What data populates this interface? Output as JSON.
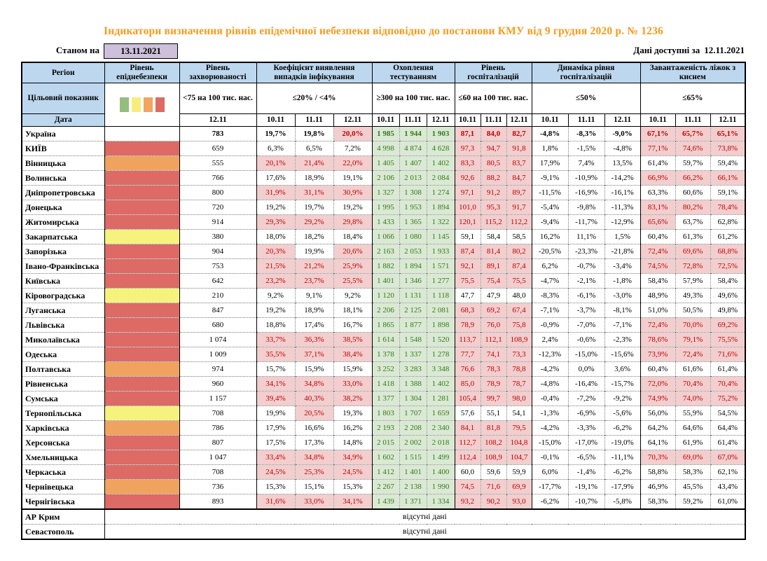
{
  "title": "Індикатори визначення рівнів епідемічної небезпеки відповідно до постанови КМУ від 9 грудня 2020 р. № 1236",
  "topbar": {
    "as_of_label": "Станом на",
    "as_of_date": "13.11.2021",
    "available_label": "Дані доступні за",
    "available_date": "12.11.2021"
  },
  "header": {
    "region_label": "Регіон",
    "target_label": "Цільовий показник",
    "date_label": "Дата",
    "legend": {
      "colors": [
        "#93BE7C",
        "#F5EE7D",
        "#F3A45F",
        "#DF6A63"
      ]
    },
    "groups": [
      {
        "name": "Рівень епіднебезпеки",
        "target": "",
        "dates": []
      },
      {
        "name": "Рівень захворюваності",
        "target": "<75 на 100 тис. нас.",
        "dates": [
          "12.11"
        ]
      },
      {
        "name": "Коефіцієнт виявлення випадків інфікування",
        "target": "≤20% / <4%",
        "dates": [
          "10.11",
          "11.11",
          "12.11"
        ]
      },
      {
        "name": "Охоплення тестуванням",
        "target": "≥300 на 100 тис. нас.",
        "dates": [
          "10.11",
          "11.11",
          "12.11"
        ]
      },
      {
        "name": "Рівень госпіталізацій",
        "target": "≤60 на 100 тис. нас.",
        "dates": [
          "10.11",
          "11.11",
          "12.11"
        ]
      },
      {
        "name": "Динаміка рівня госпіталізацій",
        "target": "≤50%",
        "dates": [
          "10.11",
          "11.11",
          "12.11"
        ]
      },
      {
        "name": "Завантаженість ліжок з киснем",
        "target": "≤65%",
        "dates": [
          "10.11",
          "11.11",
          "12.11"
        ]
      }
    ]
  },
  "colors": {
    "title_orange": "#FA9A1C",
    "header_blue": "#BDD7EE",
    "lavender": "#CCC0DA",
    "level_red": "#DD6A64",
    "level_orange": "#F0A35F",
    "level_yellow": "#F5F37E",
    "level_green": "#93BE7C",
    "pink_bg": "#F2CECE",
    "red_text": "#C00000",
    "green_bg": "#D9E9D3",
    "green_text": "#38761D"
  },
  "rows": [
    {
      "region": "Україна",
      "level": "none",
      "bold": true,
      "incidence": "783",
      "coef": [
        "19,7%",
        "19,8%",
        "20,0%"
      ],
      "coef_hl": [
        0,
        0,
        1
      ],
      "test": [
        "1 985",
        "1 944",
        "1 903"
      ],
      "hosp": [
        "87,1",
        "84,0",
        "82,7"
      ],
      "hosp_hl": [
        1,
        1,
        1
      ],
      "dyn": [
        "-4,8%",
        "-8,3%",
        "-9,0%"
      ],
      "load": [
        "67,1%",
        "65,7%",
        "65,1%"
      ],
      "load_hl": [
        1,
        1,
        1
      ]
    },
    {
      "region": "КИЇВ",
      "level": "red",
      "bold": false,
      "incidence": "659",
      "coef": [
        "6,3%",
        "6,5%",
        "7,2%"
      ],
      "coef_hl": [
        0,
        0,
        0
      ],
      "test": [
        "4 998",
        "4 874",
        "4 628"
      ],
      "hosp": [
        "97,3",
        "94,7",
        "91,8"
      ],
      "hosp_hl": [
        1,
        1,
        1
      ],
      "dyn": [
        "1,8%",
        "-1,5%",
        "-4,8%"
      ],
      "load": [
        "77,1%",
        "74,6%",
        "73,8%"
      ],
      "load_hl": [
        1,
        1,
        1
      ]
    },
    {
      "region": "Вінницька",
      "level": "orange",
      "bold": false,
      "incidence": "555",
      "coef": [
        "20,1%",
        "21,4%",
        "22,0%"
      ],
      "coef_hl": [
        1,
        1,
        1
      ],
      "test": [
        "1 405",
        "1 407",
        "1 402"
      ],
      "hosp": [
        "83,3",
        "80,5",
        "83,7"
      ],
      "hosp_hl": [
        1,
        1,
        1
      ],
      "dyn": [
        "17,9%",
        "7,4%",
        "13,5%"
      ],
      "load": [
        "61,4%",
        "59,7%",
        "59,4%"
      ],
      "load_hl": [
        0,
        0,
        0
      ]
    },
    {
      "region": "Волинська",
      "level": "red",
      "bold": false,
      "incidence": "766",
      "coef": [
        "17,6%",
        "18,9%",
        "19,1%"
      ],
      "coef_hl": [
        0,
        0,
        0
      ],
      "test": [
        "2 106",
        "2 013",
        "2 084"
      ],
      "hosp": [
        "92,6",
        "88,2",
        "84,7"
      ],
      "hosp_hl": [
        1,
        1,
        1
      ],
      "dyn": [
        "-9,1%",
        "-10,9%",
        "-14,2%"
      ],
      "load": [
        "66,9%",
        "66,2%",
        "66,1%"
      ],
      "load_hl": [
        1,
        1,
        1
      ]
    },
    {
      "region": "Дніпропетровська",
      "level": "red",
      "bold": false,
      "incidence": "800",
      "coef": [
        "31,9%",
        "31,1%",
        "30,9%"
      ],
      "coef_hl": [
        1,
        1,
        1
      ],
      "test": [
        "1 327",
        "1 308",
        "1 274"
      ],
      "hosp": [
        "97,1",
        "91,2",
        "89,7"
      ],
      "hosp_hl": [
        1,
        1,
        1
      ],
      "dyn": [
        "-11,5%",
        "-16,9%",
        "-16,1%"
      ],
      "load": [
        "63,3%",
        "60,6%",
        "59,1%"
      ],
      "load_hl": [
        0,
        0,
        0
      ]
    },
    {
      "region": "Донецька",
      "level": "red",
      "bold": false,
      "incidence": "720",
      "coef": [
        "19,2%",
        "19,7%",
        "19,2%"
      ],
      "coef_hl": [
        0,
        0,
        0
      ],
      "test": [
        "1 995",
        "1 953",
        "1 894"
      ],
      "hosp": [
        "101,0",
        "95,3",
        "91,7"
      ],
      "hosp_hl": [
        1,
        1,
        1
      ],
      "dyn": [
        "-5,4%",
        "-9,8%",
        "-11,3%"
      ],
      "load": [
        "83,1%",
        "80,2%",
        "78,4%"
      ],
      "load_hl": [
        1,
        1,
        1
      ]
    },
    {
      "region": "Житомирська",
      "level": "red",
      "bold": false,
      "incidence": "914",
      "coef": [
        "29,3%",
        "29,2%",
        "29,8%"
      ],
      "coef_hl": [
        1,
        1,
        1
      ],
      "test": [
        "1 433",
        "1 365",
        "1 322"
      ],
      "hosp": [
        "120,1",
        "115,2",
        "112,2"
      ],
      "hosp_hl": [
        1,
        1,
        1
      ],
      "dyn": [
        "-9,4%",
        "-11,7%",
        "-12,9%"
      ],
      "load": [
        "65,6%",
        "63,7%",
        "62,8%"
      ],
      "load_hl": [
        1,
        0,
        0
      ]
    },
    {
      "region": "Закарпатська",
      "level": "yellow",
      "bold": false,
      "incidence": "380",
      "coef": [
        "18,0%",
        "18,2%",
        "18,4%"
      ],
      "coef_hl": [
        0,
        0,
        0
      ],
      "test": [
        "1 066",
        "1 080",
        "1 145"
      ],
      "hosp": [
        "59,1",
        "58,4",
        "58,5"
      ],
      "hosp_hl": [
        0,
        0,
        0
      ],
      "dyn": [
        "16,2%",
        "11,1%",
        "1,5%"
      ],
      "load": [
        "60,4%",
        "61,3%",
        "61,2%"
      ],
      "load_hl": [
        0,
        0,
        0
      ]
    },
    {
      "region": "Запорізька",
      "level": "red",
      "bold": false,
      "incidence": "904",
      "coef": [
        "20,3%",
        "19,9%",
        "20,6%"
      ],
      "coef_hl": [
        1,
        0,
        1
      ],
      "test": [
        "2 163",
        "2 053",
        "1 933"
      ],
      "hosp": [
        "87,4",
        "81,4",
        "80,2"
      ],
      "hosp_hl": [
        1,
        1,
        1
      ],
      "dyn": [
        "-20,5%",
        "-23,3%",
        "-21,8%"
      ],
      "load": [
        "72,4%",
        "69,6%",
        "68,8%"
      ],
      "load_hl": [
        1,
        1,
        1
      ]
    },
    {
      "region": "Івано-Франківська",
      "level": "red",
      "bold": false,
      "incidence": "753",
      "coef": [
        "21,5%",
        "21,2%",
        "25,9%"
      ],
      "coef_hl": [
        1,
        1,
        1
      ],
      "test": [
        "1 882",
        "1 894",
        "1 571"
      ],
      "hosp": [
        "92,1",
        "89,1",
        "87,4"
      ],
      "hosp_hl": [
        1,
        1,
        1
      ],
      "dyn": [
        "6,2%",
        "-0,7%",
        "-3,4%"
      ],
      "load": [
        "74,5%",
        "72,8%",
        "72,5%"
      ],
      "load_hl": [
        1,
        1,
        1
      ]
    },
    {
      "region": "Київська",
      "level": "red",
      "bold": false,
      "incidence": "642",
      "coef": [
        "23,2%",
        "23,7%",
        "25,5%"
      ],
      "coef_hl": [
        1,
        1,
        1
      ],
      "test": [
        "1 401",
        "1 346",
        "1 277"
      ],
      "hosp": [
        "75,5",
        "75,4",
        "75,5"
      ],
      "hosp_hl": [
        1,
        1,
        1
      ],
      "dyn": [
        "-4,7%",
        "-2,1%",
        "-1,8%"
      ],
      "load": [
        "58,4%",
        "57,9%",
        "58,4%"
      ],
      "load_hl": [
        0,
        0,
        0
      ]
    },
    {
      "region": "Кіровоградська",
      "level": "yellow",
      "bold": false,
      "incidence": "210",
      "coef": [
        "9,2%",
        "9,1%",
        "9,2%"
      ],
      "coef_hl": [
        0,
        0,
        0
      ],
      "test": [
        "1 120",
        "1 131",
        "1 118"
      ],
      "hosp": [
        "47,7",
        "47,9",
        "48,0"
      ],
      "hosp_hl": [
        0,
        0,
        0
      ],
      "dyn": [
        "-8,3%",
        "-6,1%",
        "-3,0%"
      ],
      "load": [
        "48,9%",
        "49,3%",
        "49,6%"
      ],
      "load_hl": [
        0,
        0,
        0
      ]
    },
    {
      "region": "Луганська",
      "level": "red",
      "bold": false,
      "incidence": "847",
      "coef": [
        "19,2%",
        "18,9%",
        "18,1%"
      ],
      "coef_hl": [
        0,
        0,
        0
      ],
      "test": [
        "2 206",
        "2 125",
        "2 081"
      ],
      "hosp": [
        "68,3",
        "69,2",
        "67,4"
      ],
      "hosp_hl": [
        1,
        1,
        1
      ],
      "dyn": [
        "-7,1%",
        "-3,7%",
        "-8,1%"
      ],
      "load": [
        "51,0%",
        "50,5%",
        "49,8%"
      ],
      "load_hl": [
        0,
        0,
        0
      ]
    },
    {
      "region": "Львівська",
      "level": "red",
      "bold": false,
      "incidence": "680",
      "coef": [
        "18,8%",
        "17,4%",
        "16,7%"
      ],
      "coef_hl": [
        0,
        0,
        0
      ],
      "test": [
        "1 865",
        "1 877",
        "1 898"
      ],
      "hosp": [
        "78,9",
        "76,0",
        "75,8"
      ],
      "hosp_hl": [
        1,
        1,
        1
      ],
      "dyn": [
        "-0,9%",
        "-7,0%",
        "-7,1%"
      ],
      "load": [
        "72,4%",
        "70,0%",
        "69,2%"
      ],
      "load_hl": [
        1,
        1,
        1
      ]
    },
    {
      "region": "Миколаївська",
      "level": "red",
      "bold": false,
      "incidence": "1 074",
      "coef": [
        "33,7%",
        "36,3%",
        "38,5%"
      ],
      "coef_hl": [
        1,
        1,
        1
      ],
      "test": [
        "1 614",
        "1 548",
        "1 520"
      ],
      "hosp": [
        "113,7",
        "112,1",
        "108,9"
      ],
      "hosp_hl": [
        1,
        1,
        1
      ],
      "dyn": [
        "2,4%",
        "-0,6%",
        "-2,3%"
      ],
      "load": [
        "78,6%",
        "79,1%",
        "75,5%"
      ],
      "load_hl": [
        1,
        1,
        1
      ]
    },
    {
      "region": "Одеська",
      "level": "red",
      "bold": false,
      "incidence": "1 009",
      "coef": [
        "35,5%",
        "37,1%",
        "38,4%"
      ],
      "coef_hl": [
        1,
        1,
        1
      ],
      "test": [
        "1 378",
        "1 337",
        "1 278"
      ],
      "hosp": [
        "77,7",
        "74,1",
        "73,3"
      ],
      "hosp_hl": [
        1,
        1,
        1
      ],
      "dyn": [
        "-12,3%",
        "-15,0%",
        "-15,6%"
      ],
      "load": [
        "73,9%",
        "72,4%",
        "71,6%"
      ],
      "load_hl": [
        1,
        1,
        1
      ]
    },
    {
      "region": "Полтавська",
      "level": "orange",
      "bold": false,
      "incidence": "974",
      "coef": [
        "15,7%",
        "15,9%",
        "15,9%"
      ],
      "coef_hl": [
        0,
        0,
        0
      ],
      "test": [
        "3 252",
        "3 283",
        "3 348"
      ],
      "hosp": [
        "76,6",
        "78,3",
        "78,8"
      ],
      "hosp_hl": [
        1,
        1,
        1
      ],
      "dyn": [
        "-4,2%",
        "0,0%",
        "3,6%"
      ],
      "load": [
        "60,4%",
        "61,6%",
        "61,4%"
      ],
      "load_hl": [
        0,
        0,
        0
      ]
    },
    {
      "region": "Рівненська",
      "level": "red",
      "bold": false,
      "incidence": "960",
      "coef": [
        "34,1%",
        "34,8%",
        "33,0%"
      ],
      "coef_hl": [
        1,
        1,
        1
      ],
      "test": [
        "1 418",
        "1 388",
        "1 402"
      ],
      "hosp": [
        "85,0",
        "78,9",
        "78,7"
      ],
      "hosp_hl": [
        1,
        1,
        1
      ],
      "dyn": [
        "-4,8%",
        "-16,4%",
        "-15,7%"
      ],
      "load": [
        "72,0%",
        "70,4%",
        "70,4%"
      ],
      "load_hl": [
        1,
        1,
        1
      ]
    },
    {
      "region": "Сумська",
      "level": "red",
      "bold": false,
      "incidence": "1 157",
      "coef": [
        "39,4%",
        "40,3%",
        "38,2%"
      ],
      "coef_hl": [
        1,
        1,
        1
      ],
      "test": [
        "1 377",
        "1 304",
        "1 281"
      ],
      "hosp": [
        "105,4",
        "99,7",
        "98,0"
      ],
      "hosp_hl": [
        1,
        1,
        1
      ],
      "dyn": [
        "-0,4%",
        "-7,2%",
        "-9,2%"
      ],
      "load": [
        "74,9%",
        "74,0%",
        "75,2%"
      ],
      "load_hl": [
        1,
        1,
        1
      ]
    },
    {
      "region": "Тернопільська",
      "level": "yellow",
      "bold": false,
      "incidence": "708",
      "coef": [
        "19,9%",
        "20,5%",
        "19,3%"
      ],
      "coef_hl": [
        0,
        1,
        0
      ],
      "test": [
        "1 803",
        "1 707",
        "1 659"
      ],
      "hosp": [
        "57,6",
        "55,1",
        "54,1"
      ],
      "hosp_hl": [
        0,
        0,
        0
      ],
      "dyn": [
        "-1,3%",
        "-6,9%",
        "-5,6%"
      ],
      "load": [
        "56,0%",
        "55,9%",
        "54,5%"
      ],
      "load_hl": [
        0,
        0,
        0
      ]
    },
    {
      "region": "Харківська",
      "level": "orange",
      "bold": false,
      "incidence": "786",
      "coef": [
        "17,9%",
        "16,6%",
        "16,2%"
      ],
      "coef_hl": [
        0,
        0,
        0
      ],
      "test": [
        "2 193",
        "2 208",
        "2 340"
      ],
      "hosp": [
        "84,1",
        "81,8",
        "79,5"
      ],
      "hosp_hl": [
        1,
        1,
        1
      ],
      "dyn": [
        "-4,2%",
        "-3,3%",
        "-6,2%"
      ],
      "load": [
        "64,2%",
        "64,6%",
        "64,4%"
      ],
      "load_hl": [
        0,
        0,
        0
      ]
    },
    {
      "region": "Херсонська",
      "level": "red",
      "bold": false,
      "incidence": "807",
      "coef": [
        "17,5%",
        "17,3%",
        "14,8%"
      ],
      "coef_hl": [
        0,
        0,
        0
      ],
      "test": [
        "2 015",
        "2 002",
        "2 018"
      ],
      "hosp": [
        "112,7",
        "108,2",
        "104,8"
      ],
      "hosp_hl": [
        1,
        1,
        1
      ],
      "dyn": [
        "-15,0%",
        "-17,0%",
        "-19,0%"
      ],
      "load": [
        "64,1%",
        "61,9%",
        "61,4%"
      ],
      "load_hl": [
        0,
        0,
        0
      ]
    },
    {
      "region": "Хмельницька",
      "level": "red",
      "bold": false,
      "incidence": "1 047",
      "coef": [
        "33,4%",
        "34,8%",
        "34,9%"
      ],
      "coef_hl": [
        1,
        1,
        1
      ],
      "test": [
        "1 602",
        "1 515",
        "1 499"
      ],
      "hosp": [
        "112,4",
        "108,9",
        "104,7"
      ],
      "hosp_hl": [
        1,
        1,
        1
      ],
      "dyn": [
        "-0,1%",
        "-6,5%",
        "-11,1%"
      ],
      "load": [
        "70,3%",
        "69,0%",
        "67,0%"
      ],
      "load_hl": [
        1,
        1,
        1
      ]
    },
    {
      "region": "Черкаська",
      "level": "red",
      "bold": false,
      "incidence": "708",
      "coef": [
        "24,5%",
        "25,3%",
        "24,5%"
      ],
      "coef_hl": [
        1,
        1,
        1
      ],
      "test": [
        "1 412",
        "1 401",
        "1 400"
      ],
      "hosp": [
        "60,0",
        "59,6",
        "59,9"
      ],
      "hosp_hl": [
        0,
        0,
        0
      ],
      "dyn": [
        "6,0%",
        "-1,4%",
        "-6,2%"
      ],
      "load": [
        "58,8%",
        "58,3%",
        "62,1%"
      ],
      "load_hl": [
        0,
        0,
        0
      ]
    },
    {
      "region": "Чернівецька",
      "level": "orange",
      "bold": false,
      "incidence": "736",
      "coef": [
        "15,3%",
        "15,1%",
        "15,3%"
      ],
      "coef_hl": [
        0,
        0,
        0
      ],
      "test": [
        "2 267",
        "2 138",
        "1 990"
      ],
      "hosp": [
        "74,5",
        "71,6",
        "69,9"
      ],
      "hosp_hl": [
        1,
        1,
        1
      ],
      "dyn": [
        "-17,7%",
        "-19,1%",
        "-17,9%"
      ],
      "load": [
        "46,9%",
        "45,5%",
        "43,4%"
      ],
      "load_hl": [
        0,
        0,
        0
      ]
    },
    {
      "region": "Чернігівська",
      "level": "red",
      "bold": false,
      "incidence": "893",
      "coef": [
        "31,6%",
        "33,0%",
        "34,1%"
      ],
      "coef_hl": [
        1,
        1,
        1
      ],
      "test": [
        "1 439",
        "1 371",
        "1 334"
      ],
      "hosp": [
        "93,2",
        "90,2",
        "93,0"
      ],
      "hosp_hl": [
        1,
        1,
        1
      ],
      "dyn": [
        "-6,2%",
        "-10,7%",
        "-5,8%"
      ],
      "load": [
        "58,3%",
        "59,2%",
        "61,0%"
      ],
      "load_hl": [
        0,
        0,
        0
      ]
    }
  ],
  "no_data": {
    "label": "відсутні дані",
    "regions": [
      "АР Крим",
      "Севастополь"
    ]
  }
}
